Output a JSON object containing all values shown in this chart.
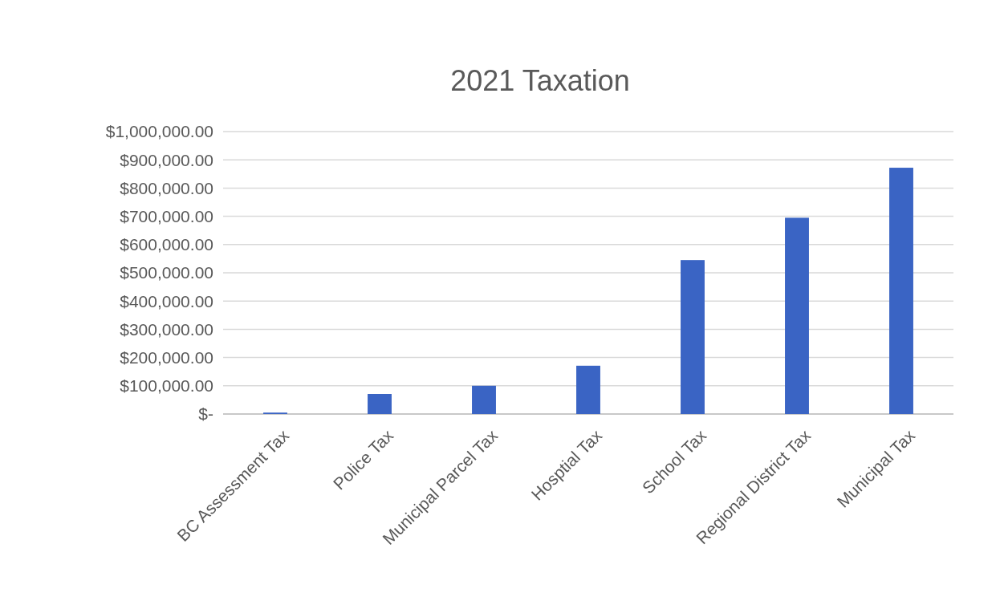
{
  "chart_data": {
    "type": "bar",
    "title": "2021 Taxation",
    "categories": [
      "BC Assessment Tax",
      "Police Tax",
      "Municipal Parcel Tax",
      "Hosptial Tax",
      "School Tax",
      "Regional District Tax",
      "Municipal Tax"
    ],
    "values": [
      5000,
      71000,
      100000,
      171000,
      545000,
      695000,
      872000
    ],
    "color": "#3a64c4",
    "ylim": [
      0,
      1000000
    ],
    "yticks": [
      {
        "value": 0,
        "label": "$-"
      },
      {
        "value": 100000,
        "label": "$100,000.00"
      },
      {
        "value": 200000,
        "label": "$200,000.00"
      },
      {
        "value": 300000,
        "label": "$300,000.00"
      },
      {
        "value": 400000,
        "label": "$400,000.00"
      },
      {
        "value": 500000,
        "label": "$500,000.00"
      },
      {
        "value": 600000,
        "label": "$600,000.00"
      },
      {
        "value": 700000,
        "label": "$700,000.00"
      },
      {
        "value": 800000,
        "label": "$800,000.00"
      },
      {
        "value": 900000,
        "label": "$900,000.00"
      },
      {
        "value": 1000000,
        "label": "$1,000,000.00"
      }
    ],
    "grid": "y"
  }
}
